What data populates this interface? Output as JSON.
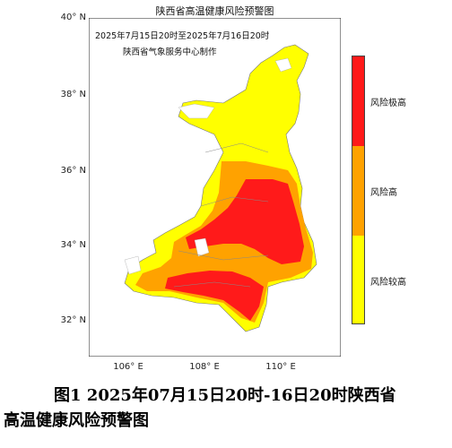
{
  "map": {
    "title": "陕西省高温健康风险预警图",
    "time_range": "2025年7月15日20时至2025年7月16日20时",
    "issuer": "陕西省气象服务中心制作",
    "lat_labels": [
      "40° N",
      "38° N",
      "36° N",
      "34° N",
      "32° N"
    ],
    "lon_labels": [
      "106° E",
      "108° E",
      "110° E"
    ]
  },
  "legend": {
    "items": [
      {
        "label": "风险极高",
        "color": "#ff1a1a"
      },
      {
        "label": "风险高",
        "color": "#ffa200"
      },
      {
        "label": "风险较高",
        "color": "#ffff00"
      }
    ]
  },
  "caption": {
    "line1": "图1 2025年07月15日20时-16日20时陕西省",
    "line2": "高温健康风险预警图"
  }
}
